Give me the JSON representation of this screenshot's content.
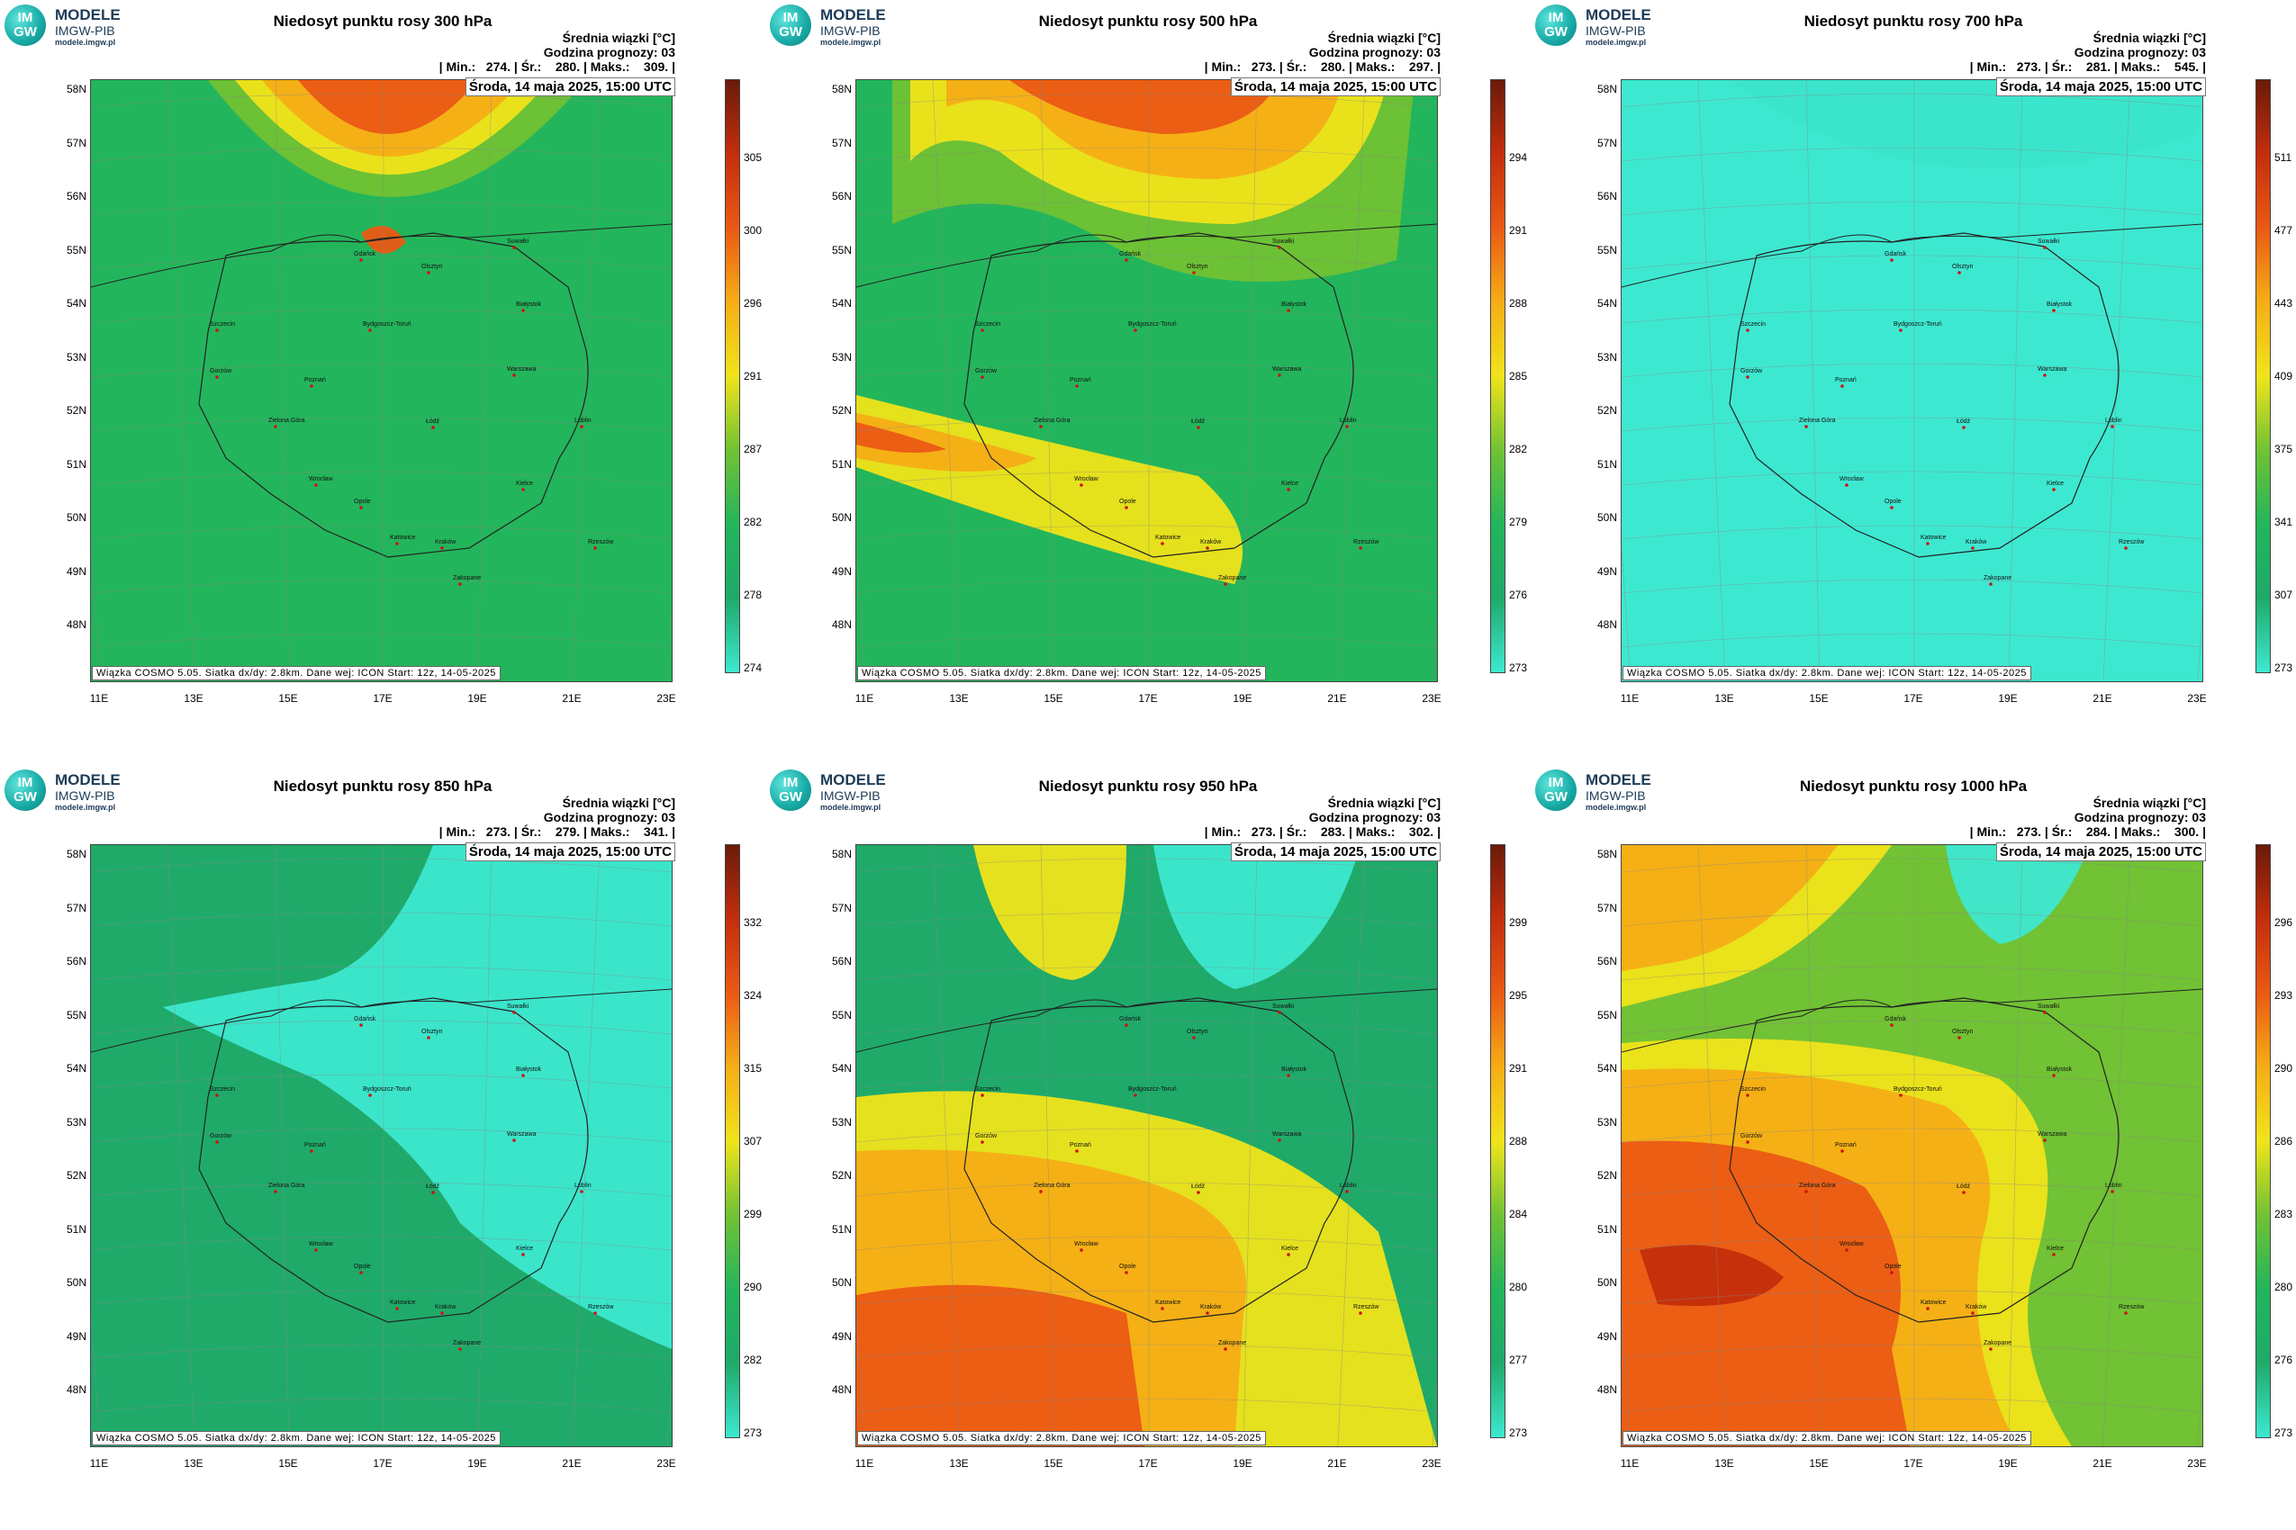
{
  "logo": {
    "mark_top": "IM",
    "mark_bottom": "GW",
    "line1": "MODELE",
    "line2": "IMGW-PIB",
    "line3": "modele.imgw.pl"
  },
  "common": {
    "ensemble_label": "Średnia wiązki [°C]",
    "forecast_label": "Godzina prognozy: 03",
    "date_label": "Środa, 14 maja 2025, 15:00 UTC",
    "footer": "Wiązka COSMO 5.05. Siatka dx/dy: 2.8km. Dane wej: ICON Start: 12z, 14-05-2025",
    "lat_labels": [
      "58N",
      "57N",
      "56N",
      "55N",
      "54N",
      "53N",
      "52N",
      "51N",
      "50N",
      "49N",
      "48N"
    ],
    "lon_labels": [
      "11E",
      "13E",
      "15E",
      "17E",
      "19E",
      "21E",
      "23E"
    ]
  },
  "panels": [
    {
      "title": "Niedosyt punktu rosy 300 hPa",
      "stats": "| Min.:   274. | Śr.:    280. | Maks.:    309. |",
      "scale": [
        "305",
        "300",
        "296",
        "291",
        "287",
        "282",
        "278",
        "274"
      ],
      "palette": [
        "#3de8d0",
        "#1faa6a",
        "#23b55b",
        "#71c234",
        "#f0e41a",
        "#f6ad16",
        "#ea5a14",
        "#c42e0c"
      ],
      "pattern": "p300"
    },
    {
      "title": "Niedosyt punktu rosy 500 hPa",
      "stats": "| Min.:   273. | Śr.:    280. | Maks.:    297. |",
      "scale": [
        "294",
        "291",
        "288",
        "285",
        "282",
        "279",
        "276",
        "273"
      ],
      "palette": [
        "#3de8d0",
        "#1faa6a",
        "#23b55b",
        "#71c234",
        "#f0e41a",
        "#f6ad16",
        "#ea5a14",
        "#c42e0c"
      ],
      "pattern": "p500"
    },
    {
      "title": "Niedosyt punktu rosy 700 hPa",
      "stats": "| Min.:   273. | Śr.:    281. | Maks.:    545. |",
      "scale": [
        "511",
        "477",
        "443",
        "409",
        "375",
        "341",
        "307",
        "273"
      ],
      "palette": [
        "#3de8d0",
        "#1faa6a",
        "#23b55b",
        "#71c234",
        "#f0e41a",
        "#f6ad16",
        "#ea5a14",
        "#c42e0c"
      ],
      "pattern": "p700"
    },
    {
      "title": "Niedosyt punktu rosy 850 hPa",
      "stats": "| Min.:   273. | Śr.:    279. | Maks.:    341. |",
      "scale": [
        "332",
        "324",
        "315",
        "307",
        "299",
        "290",
        "282",
        "273"
      ],
      "palette": [
        "#3de8d0",
        "#1faa6a",
        "#23b55b",
        "#71c234",
        "#f0e41a",
        "#f6ad16",
        "#ea5a14",
        "#c42e0c"
      ],
      "pattern": "p850"
    },
    {
      "title": "Niedosyt punktu rosy 950 hPa",
      "stats": "| Min.:   273. | Śr.:    283. | Maks.:    302. |",
      "scale": [
        "299",
        "295",
        "291",
        "288",
        "284",
        "280",
        "277",
        "273"
      ],
      "palette": [
        "#3de8d0",
        "#1faa6a",
        "#23b55b",
        "#71c234",
        "#f0e41a",
        "#f6ad16",
        "#ea5a14",
        "#c42e0c"
      ],
      "pattern": "p950"
    },
    {
      "title": "Niedosyt punktu rosy 1000 hPa",
      "stats": "| Min.:   273. | Śr.:    284. | Maks.:    300. |",
      "scale": [
        "296",
        "293",
        "290",
        "286",
        "283",
        "280",
        "276",
        "273"
      ],
      "palette": [
        "#3de8d0",
        "#1faa6a",
        "#23b55b",
        "#71c234",
        "#f0e41a",
        "#f6ad16",
        "#ea5a14",
        "#c42e0c"
      ],
      "pattern": "p1000"
    }
  ],
  "cities": [
    "Gdańsk",
    "Olsztyn",
    "Suwałki",
    "Białystok",
    "Szczecin",
    "Bydgoszcz-Toruń",
    "Gorzów",
    "Poznań",
    "Warszawa",
    "Zielona Góra",
    "Łódź",
    "Lublin",
    "Wrocław",
    "Kielce",
    "Opole",
    "Katowice",
    "Kraków",
    "Rzeszów",
    "Zakopane"
  ]
}
